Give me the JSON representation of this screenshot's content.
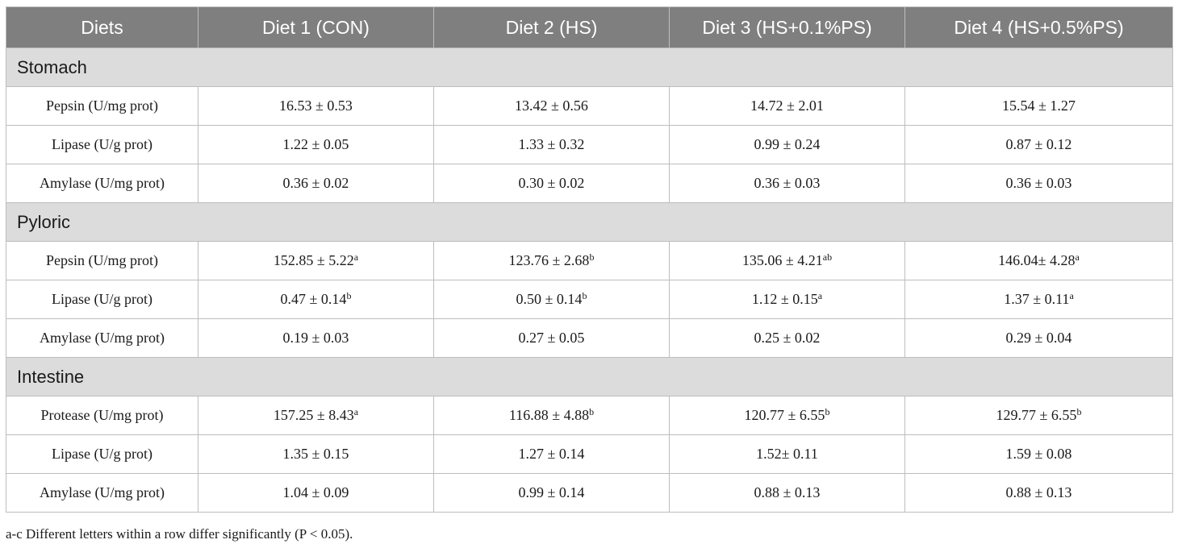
{
  "table": {
    "headers": [
      "Diets",
      "Diet 1 (CON)",
      "Diet 2 (HS)",
      "Diet 3 (HS+0.1%PS)",
      "Diet 4 (HS+0.5%PS)"
    ],
    "sections": [
      {
        "title": "Stomach",
        "rows": [
          {
            "label": "Pepsin (U/mg prot)",
            "cells": [
              {
                "value": "16.53 ± 0.53",
                "sup": ""
              },
              {
                "value": "13.42 ± 0.56",
                "sup": ""
              },
              {
                "value": "14.72 ± 2.01",
                "sup": ""
              },
              {
                "value": "15.54 ± 1.27",
                "sup": ""
              }
            ]
          },
          {
            "label": "Lipase (U/g prot)",
            "cells": [
              {
                "value": "1.22 ± 0.05",
                "sup": ""
              },
              {
                "value": "1.33 ± 0.32",
                "sup": ""
              },
              {
                "value": "0.99 ± 0.24",
                "sup": ""
              },
              {
                "value": "0.87 ± 0.12",
                "sup": ""
              }
            ]
          },
          {
            "label": "Amylase (U/mg prot)",
            "cells": [
              {
                "value": "0.36 ± 0.02",
                "sup": ""
              },
              {
                "value": "0.30 ± 0.02",
                "sup": ""
              },
              {
                "value": "0.36 ± 0.03",
                "sup": ""
              },
              {
                "value": "0.36 ± 0.03",
                "sup": ""
              }
            ]
          }
        ]
      },
      {
        "title": "Pyloric",
        "rows": [
          {
            "label": "Pepsin (U/mg prot)",
            "cells": [
              {
                "value": "152.85 ± 5.22",
                "sup": "a"
              },
              {
                "value": "123.76 ± 2.68",
                "sup": "b"
              },
              {
                "value": "135.06 ± 4.21",
                "sup": "ab"
              },
              {
                "value": "146.04± 4.28",
                "sup": "a"
              }
            ]
          },
          {
            "label": "Lipase (U/g prot)",
            "cells": [
              {
                "value": "0.47 ± 0.14",
                "sup": "b"
              },
              {
                "value": "0.50 ± 0.14",
                "sup": "b"
              },
              {
                "value": "1.12 ± 0.15",
                "sup": "a"
              },
              {
                "value": "1.37 ± 0.11",
                "sup": "a"
              }
            ]
          },
          {
            "label": "Amylase (U/mg prot)",
            "cells": [
              {
                "value": "0.19 ± 0.03",
                "sup": ""
              },
              {
                "value": "0.27 ± 0.05",
                "sup": ""
              },
              {
                "value": "0.25 ± 0.02",
                "sup": ""
              },
              {
                "value": "0.29 ± 0.04",
                "sup": ""
              }
            ]
          }
        ]
      },
      {
        "title": "Intestine",
        "rows": [
          {
            "label": "Protease (U/mg prot)",
            "cells": [
              {
                "value": "157.25 ± 8.43",
                "sup": "a"
              },
              {
                "value": "116.88 ± 4.88",
                "sup": "b"
              },
              {
                "value": "120.77 ± 6.55",
                "sup": "b"
              },
              {
                "value": "129.77 ± 6.55",
                "sup": "b"
              }
            ]
          },
          {
            "label": "Lipase (U/g prot)",
            "cells": [
              {
                "value": "1.35 ± 0.15",
                "sup": ""
              },
              {
                "value": "1.27 ± 0.14",
                "sup": ""
              },
              {
                "value": "1.52± 0.11",
                "sup": ""
              },
              {
                "value": "1.59 ± 0.08",
                "sup": ""
              }
            ]
          },
          {
            "label": "Amylase (U/mg prot)",
            "cells": [
              {
                "value": "1.04 ± 0.09",
                "sup": ""
              },
              {
                "value": "0.99 ± 0.14",
                "sup": ""
              },
              {
                "value": "0.88 ± 0.13",
                "sup": ""
              },
              {
                "value": "0.88 ± 0.13",
                "sup": ""
              }
            ]
          }
        ]
      }
    ]
  },
  "footnote": "a-c Different letters within a row differ significantly (P < 0.05).",
  "colors": {
    "header_bg": "#7f7f7f",
    "section_bg": "#dcdcdc",
    "border": "#bdbdbd"
  }
}
